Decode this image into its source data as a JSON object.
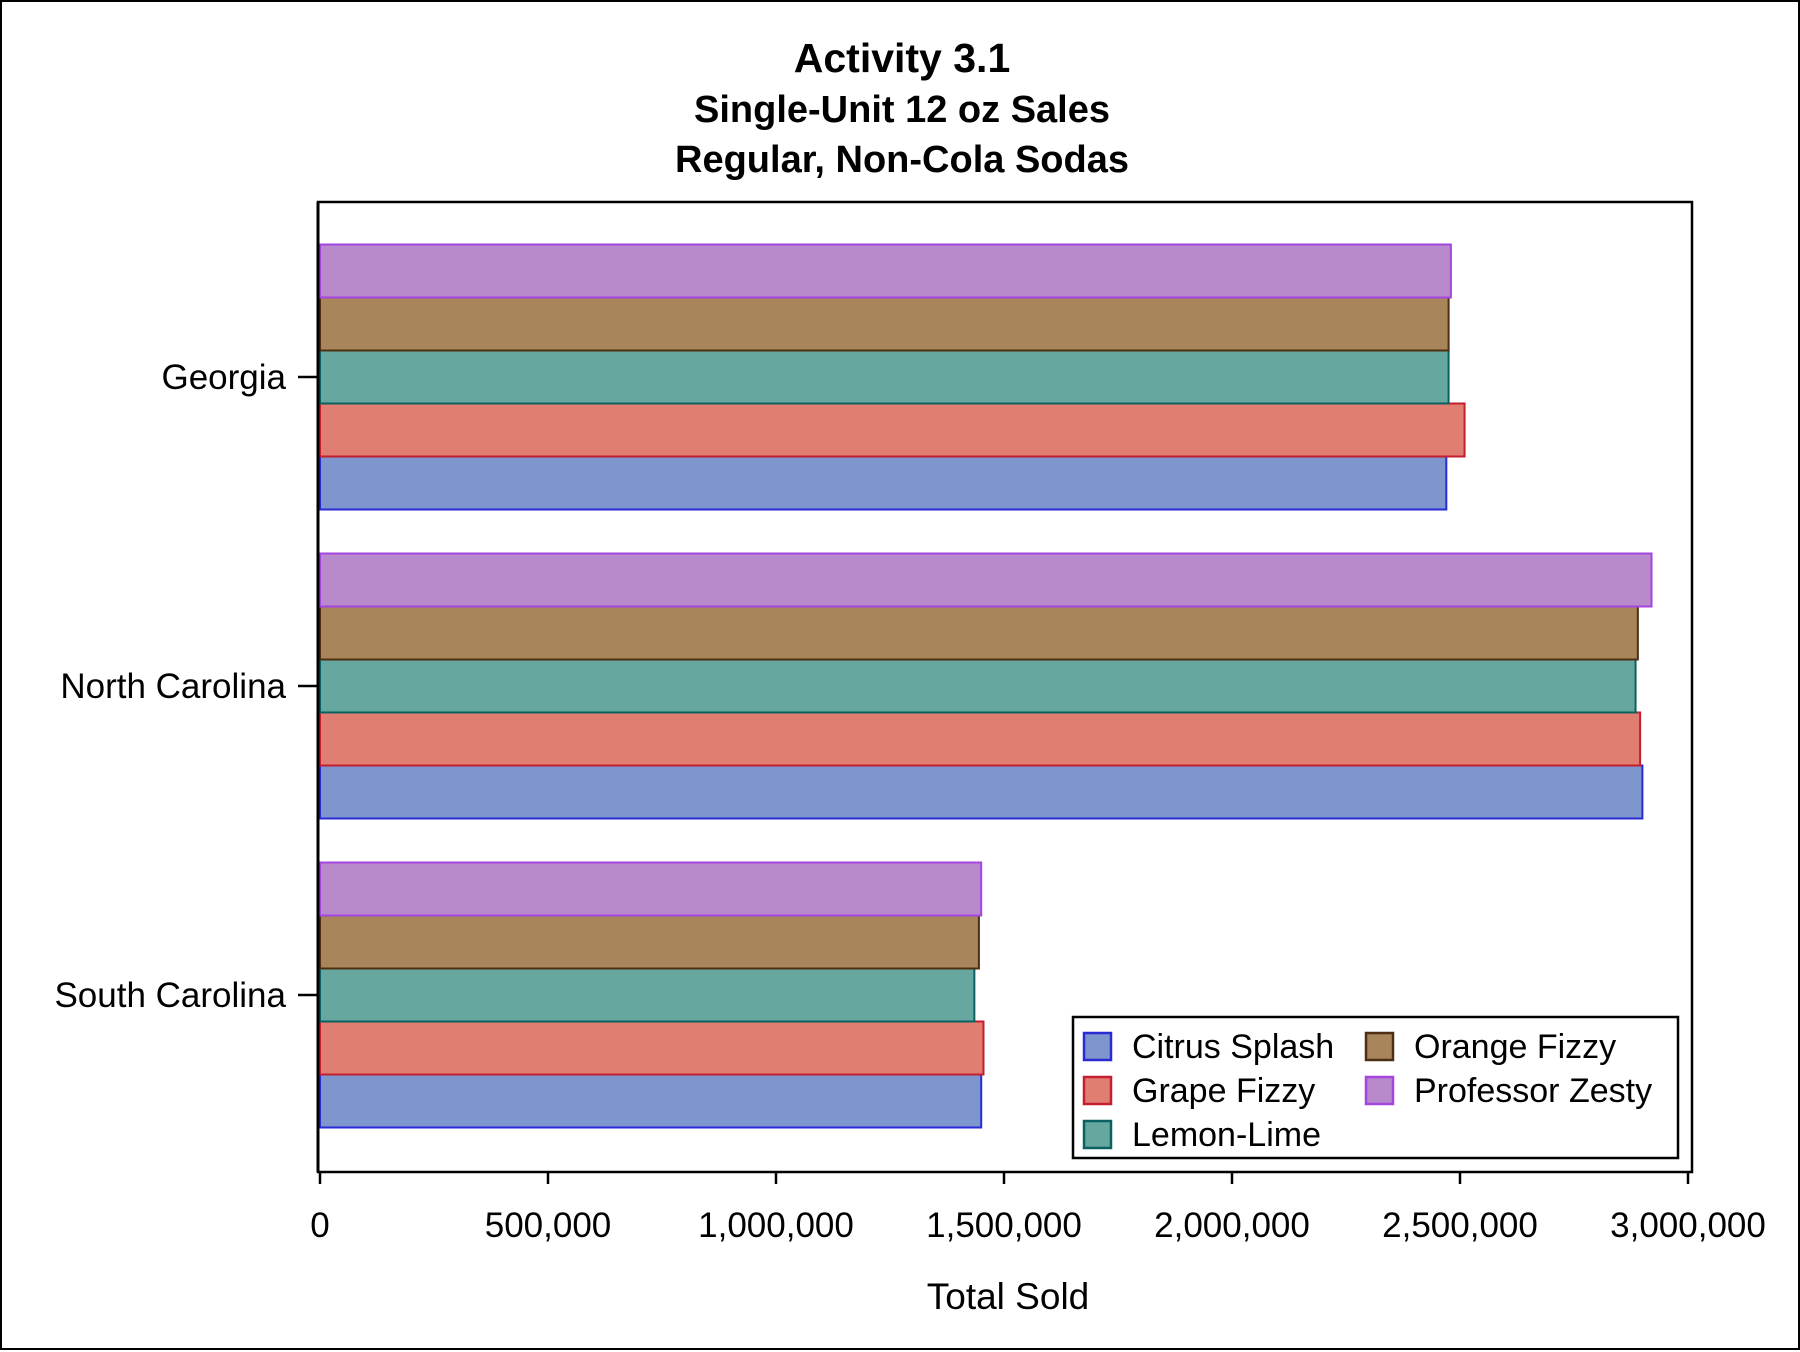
{
  "chart_data": {
    "type": "bar",
    "orientation": "horizontal",
    "title": "Activity 3.1",
    "subtitles": [
      "Single-Unit 12 oz Sales",
      "Regular, Non-Cola Sodas"
    ],
    "xlabel": "Total Sold",
    "ylabel": "",
    "xlim": [
      0,
      3000000
    ],
    "xticks": [
      0,
      500000,
      1000000,
      1500000,
      2000000,
      2500000,
      3000000
    ],
    "xtick_labels": [
      "0",
      "500,000",
      "1,000,000",
      "1,500,000",
      "2,000,000",
      "2,500,000",
      "3,000,000"
    ],
    "categories": [
      "Georgia",
      "North Carolina",
      "South Carolina"
    ],
    "series": [
      {
        "name": "Citrus Splash",
        "fill": "#7d96cd",
        "stroke": "#2b2bd6",
        "values": [
          2470000,
          2900000,
          1450000
        ]
      },
      {
        "name": "Grape Fizzy",
        "fill": "#e07e71",
        "stroke": "#c41e30",
        "values": [
          2510000,
          2895000,
          1455000
        ]
      },
      {
        "name": "Lemon-Lime",
        "fill": "#66a7a0",
        "stroke": "#0a6160",
        "values": [
          2475000,
          2885000,
          1435000
        ]
      },
      {
        "name": "Orange Fizzy",
        "fill": "#a8855b",
        "stroke": "#4e2f12",
        "values": [
          2475000,
          2890000,
          1445000
        ]
      },
      {
        "name": "Professor Zesty",
        "fill": "#b88acb",
        "stroke": "#a545e0",
        "values": [
          2480000,
          2920000,
          1450000
        ]
      }
    ],
    "grid": false,
    "legend_position": "bottom-right inside"
  }
}
